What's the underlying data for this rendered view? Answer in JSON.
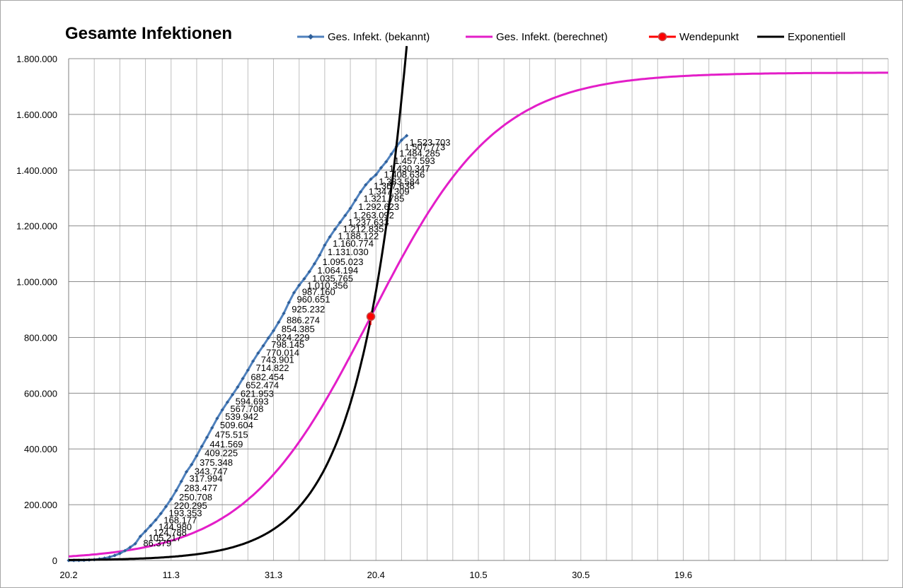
{
  "chart_data": {
    "type": "line",
    "title": "Gesamte Infektionen",
    "xlabel": "",
    "ylabel": "",
    "ylim": [
      0,
      1800000
    ],
    "y_ticks": [
      0,
      200000,
      400000,
      600000,
      800000,
      1000000,
      1200000,
      1400000,
      1600000,
      1800000
    ],
    "y_tick_labels": [
      "0",
      "200.000",
      "400.000",
      "600.000",
      "800.000",
      "1.000.000",
      "1.200.000",
      "1.400.000",
      "1.600.000",
      "1.800.000"
    ],
    "x_tick_labels": [
      "20.2",
      "11.3",
      "31.3",
      "20.4",
      "10.5",
      "30.5",
      "19.6"
    ],
    "grid": true,
    "legend_position": "top",
    "legend": [
      {
        "name": "Ges. Infekt. (bekannt)",
        "color": "#4f81bd",
        "marker": "diamond"
      },
      {
        "name": "Ges. Infekt. (berechnet)",
        "color": "#e31ec8",
        "marker": "none"
      },
      {
        "name": "Wendepunkt",
        "color": "#ff0000",
        "marker": "circle"
      },
      {
        "name": "Exponentiell",
        "color": "#000000",
        "marker": "none"
      }
    ],
    "series": [
      {
        "name": "Ges. Infekt. (bekannt)",
        "color": "#4f81bd",
        "values": [
          0,
          0,
          200,
          800,
          1800,
          2800,
          5000,
          8000,
          12000,
          18000,
          25000,
          35000,
          47000,
          60000,
          86379,
          105217,
          124788,
          144980,
          168177,
          193353,
          220295,
          250708,
          283477,
          317994,
          343747,
          375348,
          409225,
          441569,
          475515,
          509604,
          539942,
          567708,
          594693,
          621953,
          652474,
          682454,
          714822,
          743901,
          770014,
          798145,
          824229,
          854385,
          886274,
          925232,
          960651,
          987160,
          1010356,
          1035765,
          1064194,
          1095023,
          1131030,
          1160774,
          1188122,
          1212835,
          1237633,
          1263092,
          1292623,
          1321785,
          1347309,
          1367638,
          1383584,
          1408636,
          1430347,
          1457593,
          1484285,
          1507773,
          1523703
        ]
      },
      {
        "name": "Ges. Infekt. (berechnet)",
        "color": "#e31ec8",
        "logistic": {
          "capacity": 1750000,
          "midpoint_day": 59,
          "rate": 0.0812
        },
        "day_range": [
          0,
          160
        ]
      },
      {
        "name": "Wendepunkt",
        "color": "#ff0000",
        "point": {
          "day": 59,
          "value": 875000
        }
      },
      {
        "name": "Exponentiell",
        "color": "#000000",
        "exponential": {
          "base_value": 1500,
          "growth_rate": 0.1078
        },
        "day_range": [
          0,
          66
        ]
      }
    ],
    "data_labels": [
      "86.379",
      "105.217",
      "124.788",
      "144.980",
      "168.177",
      "193.353",
      "220.295",
      "250.708",
      "283.477",
      "317.994",
      "343.747",
      "375.348",
      "409.225",
      "441.569",
      "475.515",
      "509.604",
      "539.942",
      "567.708",
      "594.693",
      "621.953",
      "652.474",
      "682.454",
      "714.822",
      "743.901",
      "770.014",
      "798.145",
      "824.229",
      "854.385",
      "886.274",
      "925.232",
      "960.651",
      "987.160",
      "1.010.356",
      "1.035.765",
      "1.064.194",
      "1.095.023",
      "1.131.030",
      "1.160.774",
      "1.188.122",
      "1.212.835",
      "1.237.633",
      "1.263.092",
      "1.292.623",
      "1.321.785",
      "1.347.309",
      "1.367.638",
      "1.383.584",
      "1.408.636",
      "1.430.347",
      "1.457.593",
      "1.484.285",
      "1.507.773",
      "1.523.703"
    ]
  }
}
